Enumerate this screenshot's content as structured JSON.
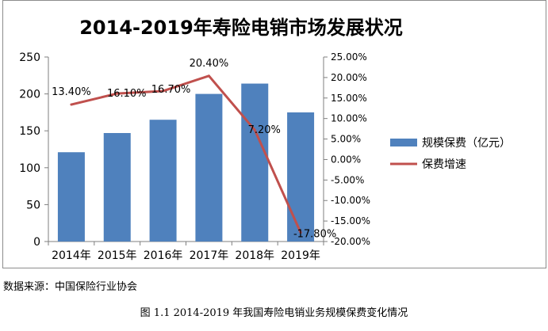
{
  "chart_data": {
    "type": "bar+line",
    "title": "2014-2019年寿险电销市场发展状况",
    "categories": [
      "2014年",
      "2015年",
      "2016年",
      "2017年",
      "2018年",
      "2019年"
    ],
    "series": [
      {
        "name": "规模保费（亿元）",
        "type": "bar",
        "axis": "left",
        "values": [
          121,
          147,
          165,
          200,
          214,
          175
        ],
        "color": "#4f81bd"
      },
      {
        "name": "保费增速",
        "type": "line",
        "axis": "right",
        "values": [
          13.4,
          16.1,
          16.7,
          20.4,
          7.2,
          -17.8
        ],
        "color": "#c0504d",
        "labels": [
          "13.40%",
          "16.10%",
          "16.70%",
          "20.40%",
          "7.20%",
          "-17.80%"
        ]
      }
    ],
    "y_left": {
      "min": 0,
      "max": 250,
      "ticks": [
        "0",
        "50",
        "100",
        "150",
        "200",
        "250"
      ]
    },
    "y_right": {
      "min": -20,
      "max": 25,
      "ticks": [
        "-20.00%",
        "-15.00%",
        "-10.00%",
        "-5.00%",
        "0.00%",
        "5.00%",
        "10.00%",
        "15.00%",
        "20.00%",
        "25.00%"
      ]
    },
    "legend_position": "right",
    "grid": false
  },
  "source_text": "数据来源：中国保险行业协会",
  "caption": "图 1.1 2014-2019 年我国寿险电销业务规模保费变化情况"
}
